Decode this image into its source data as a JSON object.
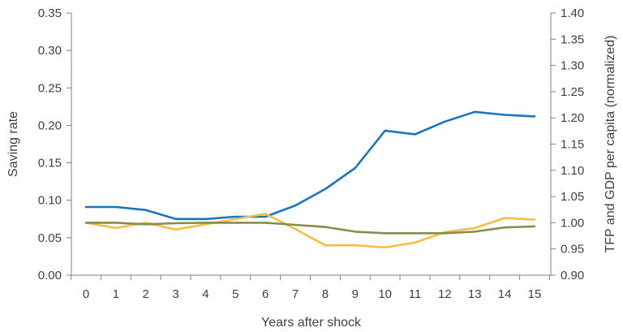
{
  "chart_data": {
    "type": "line",
    "title": "",
    "xlabel": "Years after shock",
    "ylabel": "Saving rate",
    "y2label": "TFP and GDP per capita (normalized)",
    "x": [
      0,
      1,
      2,
      3,
      4,
      5,
      6,
      7,
      8,
      9,
      10,
      11,
      12,
      13,
      14,
      15
    ],
    "xlim": [
      0,
      15
    ],
    "ylim": [
      0.0,
      0.35
    ],
    "y2lim": [
      0.9,
      1.4
    ],
    "y_ticks": [
      "0.00",
      "0.05",
      "0.10",
      "0.15",
      "0.20",
      "0.25",
      "0.30",
      "0.35"
    ],
    "y2_ticks": [
      "0.90",
      "0.95",
      "1.00",
      "1.05",
      "1.10",
      "1.15",
      "1.20",
      "1.25",
      "1.30",
      "1.35",
      "1.40"
    ],
    "grid": false,
    "legend": "none",
    "series": [
      {
        "axis": "left",
        "color": "#1a75bc",
        "values": [
          0.091,
          0.091,
          0.087,
          0.075,
          0.075,
          0.078,
          0.078,
          0.093,
          0.115,
          0.143,
          0.193,
          0.188,
          0.205,
          0.218,
          0.214,
          0.212
        ]
      },
      {
        "axis": "right",
        "color": "#f4bf42",
        "values": [
          1.0,
          0.99,
          1.0,
          0.987,
          0.997,
          1.007,
          1.017,
          0.988,
          0.957,
          0.957,
          0.953,
          0.962,
          0.982,
          0.99,
          1.009,
          1.006
        ]
      },
      {
        "axis": "right",
        "color": "#8a8c4d",
        "values": [
          1.0,
          1.0,
          0.997,
          0.999,
          1.0,
          1.0,
          1.0,
          0.996,
          0.992,
          0.983,
          0.98,
          0.98,
          0.98,
          0.983,
          0.991,
          0.993
        ]
      }
    ]
  }
}
